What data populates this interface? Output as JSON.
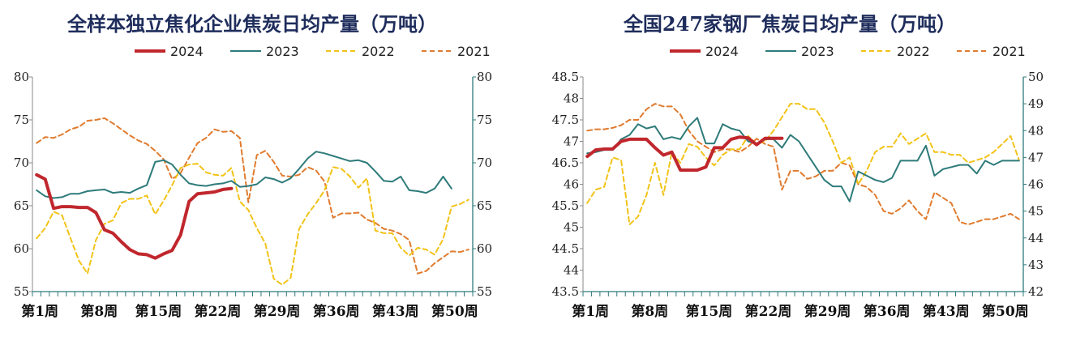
{
  "chart_data": [
    {
      "type": "line",
      "title": "全样本独立焦化企业焦炭日均产量（万吨）",
      "x_tick_labels": [
        "第1周",
        "第8周",
        "第15周",
        "第22周",
        "第29周",
        "第36周",
        "第43周",
        "第50周"
      ],
      "left_ylim": [
        55,
        80
      ],
      "left_yticks": [
        "55",
        "60",
        "65",
        "70",
        "75",
        "80"
      ],
      "right_ylim": [
        55,
        80
      ],
      "right_yticks": [
        "55",
        "60",
        "65",
        "70",
        "75",
        "80"
      ],
      "legend_position": "top-center",
      "series": [
        {
          "name": "2024",
          "color": "#c0272d",
          "axis": "left",
          "values": [
            68.6,
            68.1,
            64.7,
            64.9,
            64.9,
            64.8,
            64.8,
            64.2,
            62.2,
            61.8,
            60.8,
            59.9,
            59.4,
            59.3,
            58.9,
            59.4,
            59.8,
            61.6,
            65.5,
            66.4,
            66.5,
            66.6,
            66.9,
            67.0
          ]
        },
        {
          "name": "2023",
          "color": "#2e7b7a",
          "axis": "right",
          "values": [
            66.8,
            66.1,
            65.9,
            66.0,
            66.4,
            66.4,
            66.7,
            66.8,
            66.9,
            66.5,
            66.6,
            66.5,
            67.0,
            67.4,
            70.1,
            70.3,
            69.8,
            68.6,
            67.6,
            67.4,
            67.3,
            67.5,
            67.6,
            67.9,
            67.2,
            67.3,
            67.5,
            68.3,
            68.1,
            67.7,
            68.2,
            69.3,
            70.5,
            71.3,
            71.1,
            70.8,
            70.5,
            70.2,
            70.3,
            70.0,
            69.0,
            67.9,
            67.8,
            68.4,
            66.8,
            66.7,
            66.5,
            67.0,
            68.4,
            67.0
          ]
        },
        {
          "name": "2022",
          "color": "#f2c318",
          "axis": "left",
          "values": [
            61.2,
            62.4,
            64.3,
            63.9,
            61.2,
            58.6,
            57.1,
            61.0,
            62.9,
            63.3,
            65.3,
            65.8,
            65.8,
            66.2,
            64.0,
            65.6,
            67.4,
            69.4,
            69.8,
            69.9,
            68.9,
            68.6,
            68.5,
            69.4,
            65.5,
            64.5,
            62.4,
            60.6,
            56.5,
            55.8,
            56.6,
            62.3,
            64.0,
            65.3,
            66.8,
            69.5,
            69.3,
            68.4,
            67.1,
            68.2,
            62.1,
            61.8,
            61.8,
            60.1,
            59.2,
            60.1,
            59.9,
            59.3,
            61.1,
            64.9,
            65.2,
            65.7
          ]
        },
        {
          "name": "2021",
          "color": "#e07b2e",
          "axis": "left",
          "values": [
            72.3,
            73.0,
            72.9,
            73.3,
            73.9,
            74.2,
            74.9,
            75.0,
            75.2,
            74.6,
            73.9,
            73.2,
            72.6,
            72.2,
            71.4,
            70.4,
            68.1,
            68.8,
            70.6,
            72.3,
            72.9,
            73.9,
            73.6,
            73.7,
            72.9,
            65.4,
            70.9,
            71.4,
            70.1,
            68.5,
            68.4,
            68.6,
            69.5,
            69.1,
            67.8,
            63.6,
            64.1,
            64.1,
            64.2,
            63.4,
            63.0,
            62.3,
            62.1,
            61.7,
            61.0,
            57.1,
            57.4,
            58.3,
            59.0,
            59.7,
            59.6,
            59.9
          ]
        }
      ]
    },
    {
      "type": "line",
      "title": "全国247家钢厂焦炭日均产量（万吨）",
      "x_tick_labels": [
        "第1周",
        "第8周",
        "第15周",
        "第22周",
        "第29周",
        "第36周",
        "第43周",
        "第50周"
      ],
      "left_ylim": [
        43.5,
        48.5
      ],
      "left_yticks": [
        "43.5",
        "44",
        "44.5",
        "45",
        "45.5",
        "46",
        "46.5",
        "47",
        "47.5",
        "48",
        "48.5"
      ],
      "right_ylim": [
        42,
        50
      ],
      "right_yticks": [
        "42",
        "43",
        "44",
        "45",
        "46",
        "47",
        "48",
        "49",
        "50"
      ],
      "legend_position": "top-center",
      "series": [
        {
          "name": "2024",
          "color": "#c0272d",
          "axis": "left",
          "values": [
            46.65,
            46.8,
            46.82,
            46.82,
            47.0,
            47.05,
            47.05,
            47.05,
            46.85,
            46.68,
            46.75,
            46.33,
            46.33,
            46.33,
            46.4,
            46.85,
            46.85,
            47.05,
            47.1,
            47.08,
            46.92,
            47.07,
            47.07,
            47.07
          ]
        },
        {
          "name": "2023",
          "color": "#2e7b7a",
          "axis": "left",
          "values": [
            46.72,
            46.75,
            46.8,
            46.8,
            47.05,
            47.15,
            47.4,
            47.3,
            47.35,
            47.05,
            47.1,
            47.05,
            47.35,
            47.55,
            46.95,
            46.95,
            47.4,
            47.3,
            47.25,
            47.0,
            46.95,
            47.05,
            47.05,
            46.85,
            47.15,
            47.0,
            46.7,
            46.4,
            46.1,
            45.95,
            45.95,
            45.6,
            46.3,
            46.2,
            46.1,
            46.05,
            46.15,
            46.55,
            46.55,
            46.55,
            46.9,
            46.2,
            46.35,
            46.4,
            46.45,
            46.45,
            46.25,
            46.55,
            46.45,
            46.55,
            46.55,
            46.55
          ]
        },
        {
          "name": "2022",
          "color": "#f2c318",
          "axis": "right",
          "values": [
            45.3,
            45.8,
            45.9,
            47.0,
            46.9,
            44.5,
            44.8,
            45.6,
            46.8,
            45.6,
            47.2,
            46.8,
            47.5,
            47.4,
            47.0,
            46.7,
            47.1,
            47.3,
            47.3,
            47.8,
            47.5,
            47.6,
            48.0,
            48.5,
            49.0,
            49.0,
            48.8,
            48.8,
            48.3,
            47.6,
            46.8,
            47.0,
            46.0,
            46.5,
            47.2,
            47.4,
            47.4,
            47.9,
            47.5,
            47.7,
            47.9,
            47.2,
            47.2,
            47.1,
            47.1,
            46.8,
            46.9,
            47.0,
            47.2,
            47.5,
            47.8,
            46.9
          ]
        },
        {
          "name": "2021",
          "color": "#e07b2e",
          "axis": "right",
          "values": [
            48.0,
            48.05,
            48.05,
            48.1,
            48.2,
            48.4,
            48.4,
            48.8,
            49.0,
            48.9,
            48.9,
            48.6,
            48.0,
            47.6,
            47.4,
            47.2,
            47.3,
            47.3,
            47.2,
            47.4,
            47.7,
            47.5,
            47.4,
            45.8,
            46.5,
            46.5,
            46.2,
            46.3,
            46.5,
            46.5,
            46.8,
            46.7,
            46.0,
            45.9,
            45.6,
            45.0,
            44.9,
            45.1,
            45.4,
            45.0,
            44.7,
            45.7,
            45.5,
            45.3,
            44.6,
            44.5,
            44.6,
            44.7,
            44.7,
            44.8,
            44.9,
            44.7
          ]
        }
      ]
    }
  ]
}
